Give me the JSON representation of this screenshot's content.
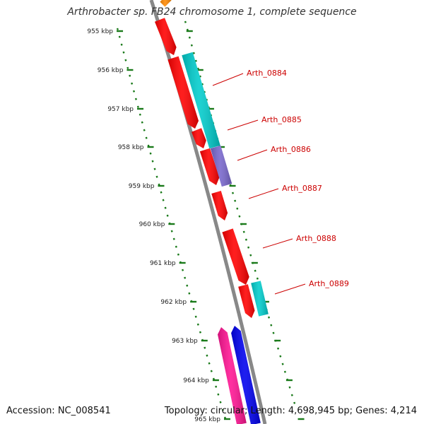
{
  "title": "Arthrobacter sp. FB24 chromosome 1, complete sequence",
  "footer": {
    "accession": "Accession: NC_008541",
    "topology": "Topology: circular; Length: 4,698,945 bp; Genes: 4,214"
  },
  "colors": {
    "backbone": "#888888",
    "ticks": "#1a7a1a",
    "label_text": "#cc0000",
    "leader_line": "#cc0000"
  },
  "ticks": [
    {
      "label": "955 kbp"
    },
    {
      "label": "956 kbp"
    },
    {
      "label": "957 kbp"
    },
    {
      "label": "958 kbp"
    },
    {
      "label": "959 kbp"
    },
    {
      "label": "960 kbp"
    },
    {
      "label": "961 kbp"
    },
    {
      "label": "962 kbp"
    },
    {
      "label": "963 kbp"
    },
    {
      "label": "964 kbp"
    },
    {
      "label": "965 kbp"
    }
  ],
  "gene_labels": [
    {
      "label": "Arth_0884"
    },
    {
      "label": "Arth_0885"
    },
    {
      "label": "Arth_0886"
    },
    {
      "label": "Arth_0887"
    },
    {
      "label": "Arth_0888"
    },
    {
      "label": "Arth_0889"
    }
  ],
  "features": [
    {
      "strand": "forward",
      "color": "#ff0000"
    },
    {
      "strand": "forward",
      "color": "#ff0000"
    },
    {
      "strand": "forward",
      "color": "#ff0000"
    },
    {
      "strand": "forward",
      "color": "#ff0000"
    },
    {
      "strand": "forward",
      "color": "#ff0000"
    },
    {
      "strand": "forward",
      "color": "#ff0000"
    },
    {
      "strand": "forward",
      "color": "#ff0000"
    },
    {
      "strand": "outer",
      "color": "#00cccc"
    },
    {
      "strand": "outer",
      "color": "#7766cc"
    },
    {
      "strand": "outer",
      "color": "#00cccc"
    },
    {
      "strand": "forward",
      "color": "#ff1493"
    },
    {
      "strand": "forward",
      "color": "#0000ee"
    },
    {
      "strand": "top",
      "color": "#ff8800"
    }
  ]
}
